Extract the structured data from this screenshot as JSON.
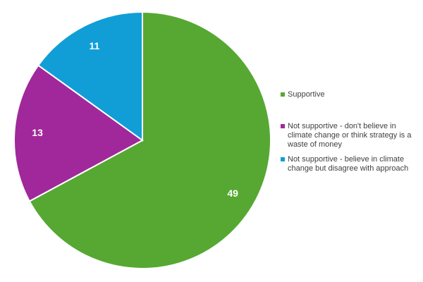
{
  "chart_data": {
    "type": "pie",
    "title": "",
    "slices": [
      {
        "label": "Supportive",
        "value": 49,
        "color": "#56A832"
      },
      {
        "label": "Not supportive - don't believe in climate change or think strategy is a waste of money",
        "value": 13,
        "color": "#A0289A"
      },
      {
        "label": "Not supportive - believe in climate change but disagree with approach",
        "value": 11,
        "color": "#119ED6"
      }
    ],
    "data_labels": [
      "49",
      "13",
      "11"
    ],
    "legend": {
      "placement": "right",
      "entries": [
        "Supportive",
        "Not supportive - don't believe in climate change or think strategy is a waste of money",
        "Not supportive - believe in climate change but disagree with approach"
      ]
    }
  }
}
